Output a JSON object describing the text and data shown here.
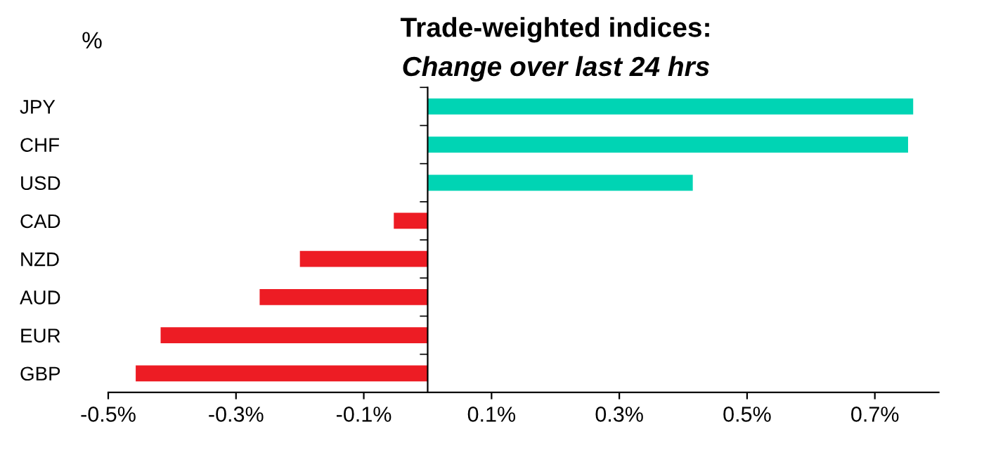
{
  "chart_data": {
    "type": "bar",
    "orientation": "horizontal",
    "title": "Trade-weighted indices:",
    "subtitle": "Change over last 24 hrs",
    "annotations": [
      "%"
    ],
    "categories": [
      "JPY",
      "CHF",
      "USD",
      "CAD",
      "NZD",
      "AUD",
      "EUR",
      "GBP"
    ],
    "values": [
      0.76,
      0.752,
      0.415,
      -0.053,
      -0.2,
      -0.263,
      -0.418,
      -0.457
    ],
    "colors": [
      "#00d4b4",
      "#00d4b4",
      "#00d4b4",
      "#ed1c24",
      "#ed1c24",
      "#ed1c24",
      "#ed1c24",
      "#ed1c24"
    ],
    "xlim": [
      -0.5,
      0.8
    ],
    "xticks": [
      {
        "value": -0.5,
        "label": "-0.5%"
      },
      {
        "value": -0.3,
        "label": "-0.3%"
      },
      {
        "value": -0.1,
        "label": "-0.1%"
      },
      {
        "value": 0.1,
        "label": "0.1%"
      },
      {
        "value": 0.3,
        "label": "0.3%"
      },
      {
        "value": 0.5,
        "label": "0.5%"
      },
      {
        "value": 0.7,
        "label": "0.7%"
      }
    ],
    "grid": false,
    "legend": false
  }
}
